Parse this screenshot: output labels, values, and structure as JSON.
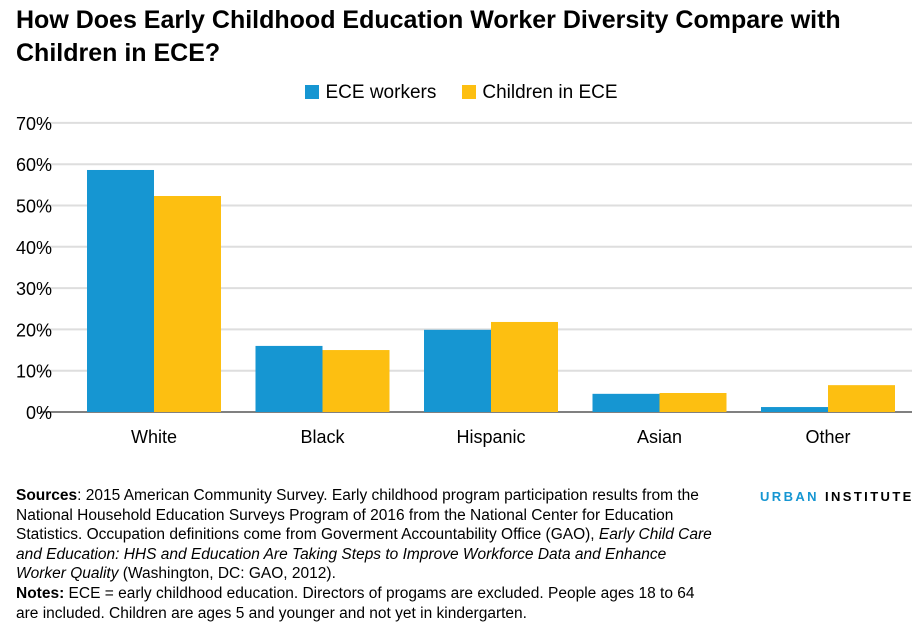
{
  "chart_data": {
    "type": "bar",
    "title": "How Does Early Childhood Education Worker Diversity Compare with Children in ECE?",
    "categories": [
      "White",
      "Black",
      "Hispanic",
      "Asian",
      "Other"
    ],
    "series": [
      {
        "name": "ECE workers",
        "color": "#1696d2",
        "values": [
          58.6,
          16.0,
          19.9,
          4.4,
          1.2
        ]
      },
      {
        "name": "Children in ECE",
        "color": "#fdbf11",
        "values": [
          52.3,
          15.0,
          21.8,
          4.6,
          6.5
        ]
      }
    ],
    "ylim": [
      0,
      70
    ],
    "yticks": [
      "0%",
      "10%",
      "20%",
      "30%",
      "40%",
      "50%",
      "60%",
      "70%"
    ],
    "grid": true,
    "legend": "top-center"
  },
  "notes": {
    "sources_label": "Sources",
    "sources_text": ": 2015 American Community Survey. Early childhood program participation results from the National Household Education Surveys Program of 2016 from the National Center for Education Statistics. Occupation definitions come from Goverment Accountability Office (GAO), ",
    "sources_italic": "Early Child Care and Education: HHS and Education Are Taking Steps to Improve Workforce Data and Enhance Worker Quality",
    "sources_end": " (Washington, DC: GAO, 2012).",
    "notes_label": "Notes:",
    "notes_text": " ECE = early childhood education. Directors of progams are excluded. People ages 18 to 64 are included. Children are ages 5 and younger and not yet in kindergarten."
  },
  "logo": {
    "part1": "URBAN",
    "part2": "INSTITUTE",
    "color1": "#1696d2"
  }
}
